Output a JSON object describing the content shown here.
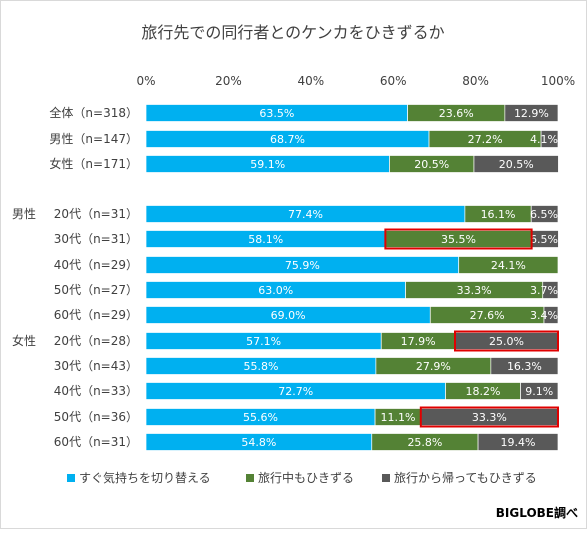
{
  "chart_data": {
    "type": "bar",
    "orientation": "horizontal",
    "stacked": true,
    "title": "旅行先での同行者とのケンカをひきずるか",
    "x_ticks": [
      "0%",
      "20%",
      "40%",
      "60%",
      "80%",
      "100%"
    ],
    "xlim": [
      0,
      100
    ],
    "grid": false,
    "legend_position": "bottom",
    "source": "BIGLOBE調べ",
    "groups": [
      {
        "label": "",
        "start": 0,
        "count": 3
      },
      {
        "label": "男性",
        "start": 3,
        "count": 5
      },
      {
        "label": "女性",
        "start": 8,
        "count": 5
      }
    ],
    "categories": [
      "全体（n=318）",
      "男性（n=147）",
      "女性（n=171）",
      "20代（n=31）",
      "30代（n=31）",
      "40代（n=29）",
      "50代（n=27）",
      "60代（n=29）",
      "20代（n=28）",
      "30代（n=43）",
      "40代（n=33）",
      "50代（n=36）",
      "60代（n=31）"
    ],
    "series": [
      {
        "name": "すぐ気持ちを切り替える",
        "color": "#00b0f0",
        "values": [
          63.5,
          68.7,
          59.1,
          77.4,
          58.1,
          75.9,
          63.0,
          69.0,
          57.1,
          55.8,
          72.7,
          55.6,
          54.8
        ],
        "labels": [
          "63.5%",
          "68.7%",
          "59.1%",
          "77.4%",
          "58.1%",
          "75.9%",
          "63.0%",
          "69.0%",
          "57.1%",
          "55.8%",
          "72.7%",
          "55.6%",
          "54.8%"
        ]
      },
      {
        "name": "旅行中もひきずる",
        "color": "#548235",
        "values": [
          23.6,
          27.2,
          20.5,
          16.1,
          35.5,
          24.1,
          33.3,
          27.6,
          17.9,
          27.9,
          18.2,
          11.1,
          25.8
        ],
        "labels": [
          "23.6%",
          "27.2%",
          "20.5%",
          "16.1%",
          "35.5%",
          "24.1%",
          "33.3%",
          "27.6%",
          "17.9%",
          "27.9%",
          "18.2%",
          "11.1%",
          "25.8%"
        ]
      },
      {
        "name": "旅行から帰ってもひきずる",
        "color": "#595959",
        "values": [
          12.9,
          4.1,
          20.5,
          6.5,
          6.5,
          0,
          3.7,
          3.4,
          25.0,
          16.3,
          9.1,
          33.3,
          19.4
        ],
        "labels": [
          "12.9%",
          "4.1%",
          "20.5%",
          "6.5%",
          "6.5%",
          "",
          "3.7%",
          "3.4%",
          "25.0%",
          "16.3%",
          "9.1%",
          "33.3%",
          "19.4%"
        ]
      }
    ],
    "highlights": [
      {
        "row": 4,
        "series": 1
      },
      {
        "row": 8,
        "series": 2
      },
      {
        "row": 11,
        "series": 2
      }
    ],
    "highlight_color": "#e00000"
  }
}
